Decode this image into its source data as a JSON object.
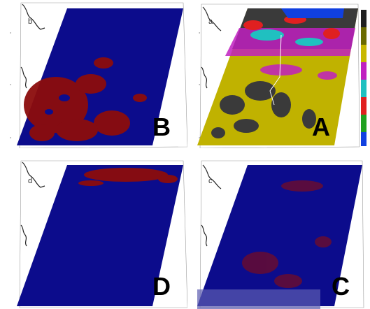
{
  "panels": [
    {
      "id": "B",
      "letter": "B",
      "small_label": "b"
    },
    {
      "id": "A",
      "letter": "A",
      "small_label": "a"
    },
    {
      "id": "D",
      "letter": "D",
      "small_label": "d"
    },
    {
      "id": "C",
      "letter": "C",
      "small_label": "c"
    }
  ],
  "colorbar": {
    "colors": [
      "#202020",
      "#6b6b00",
      "#c8b800",
      "#c020c0",
      "#20c0c0",
      "#e02020",
      "#20a020",
      "#1040e0"
    ]
  },
  "colors": {
    "background_class": "#0c0c8c",
    "mask_class": "#8c0c0c",
    "land_dark": "#3a3a3a",
    "land_yellow": "#c0b200"
  }
}
